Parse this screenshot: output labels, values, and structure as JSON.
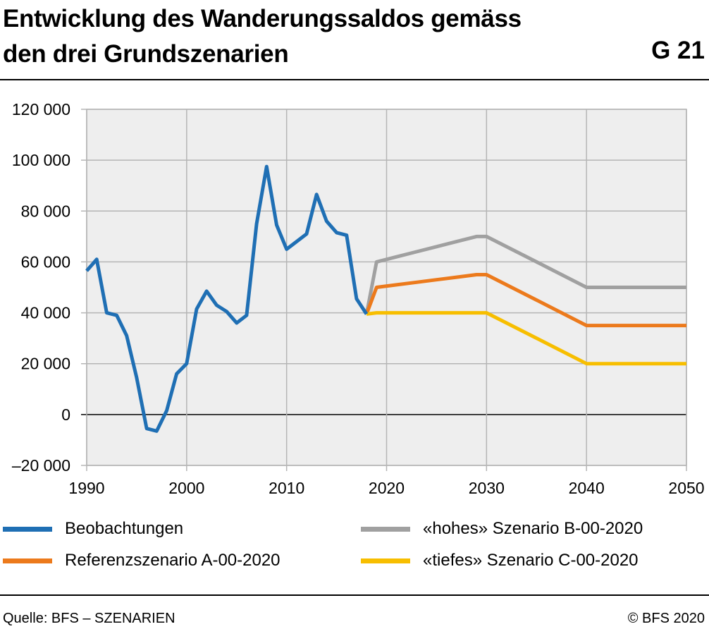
{
  "header": {
    "title_line1": "Entwicklung des Wanderungssaldos gemäss",
    "title_line2": "den drei Grundszenarien",
    "figure_number": "G 21"
  },
  "footer": {
    "source": "Quelle: BFS – SZENARIEN",
    "copyright": "© BFS 2020"
  },
  "chart_data": {
    "type": "line",
    "title": "Entwicklung des Wanderungssaldos gemäss den drei Grundszenarien",
    "xlim": [
      1990,
      2050
    ],
    "ylim": [
      -20000,
      120000
    ],
    "x_ticks": [
      1990,
      2000,
      2010,
      2020,
      2030,
      2040,
      2050
    ],
    "x_tick_labels": [
      "1990",
      "2000",
      "2010",
      "2020",
      "2030",
      "2040",
      "2050"
    ],
    "y_ticks": [
      -20000,
      0,
      20000,
      40000,
      60000,
      80000,
      100000,
      120000
    ],
    "y_tick_labels": [
      "–20 000",
      "0",
      "20 000",
      "40 000",
      "60 000",
      "80 000",
      "100 000",
      "120 000"
    ],
    "grid": true,
    "legend_position": "bottom",
    "series": [
      {
        "name": "Beobachtungen",
        "color": "#1f6fb4",
        "x": [
          1990,
          1991,
          1992,
          1993,
          1994,
          1995,
          1996,
          1997,
          1998,
          1999,
          2000,
          2001,
          2002,
          2003,
          2004,
          2005,
          2006,
          2007,
          2008,
          2009,
          2010,
          2011,
          2012,
          2013,
          2014,
          2015,
          2016,
          2017,
          2018
        ],
        "y": [
          56500,
          61000,
          40000,
          39000,
          31000,
          14500,
          -5500,
          -6500,
          1500,
          16000,
          20000,
          41500,
          48500,
          43000,
          40500,
          36000,
          39000,
          75000,
          97500,
          74500,
          65000,
          68000,
          71000,
          86500,
          76000,
          71500,
          70500,
          45500,
          39500
        ]
      },
      {
        "name": "«hohes» Szenario B-00-2020",
        "color": "#a0a0a0",
        "x": [
          2018,
          2019,
          2021,
          2023,
          2025,
          2027,
          2029,
          2030,
          2035,
          2040,
          2045,
          2050
        ],
        "y": [
          39500,
          60000,
          62000,
          64000,
          66000,
          68000,
          70000,
          70000,
          60000,
          50000,
          50000,
          50000
        ]
      },
      {
        "name": "Referenzszenario A-00-2020",
        "color": "#ec7a1c",
        "x": [
          2018,
          2019,
          2021,
          2023,
          2025,
          2027,
          2029,
          2030,
          2035,
          2040,
          2045,
          2050
        ],
        "y": [
          39500,
          50000,
          51000,
          52000,
          53000,
          54000,
          55000,
          55000,
          45000,
          35000,
          35000,
          35000
        ]
      },
      {
        "name": " «tiefes» Szenario C-00-2020",
        "color": "#f7be00",
        "x": [
          2018,
          2019,
          2025,
          2030,
          2035,
          2040,
          2045,
          2050
        ],
        "y": [
          39500,
          40000,
          40000,
          40000,
          30000,
          20000,
          20000,
          20000
        ]
      }
    ]
  }
}
